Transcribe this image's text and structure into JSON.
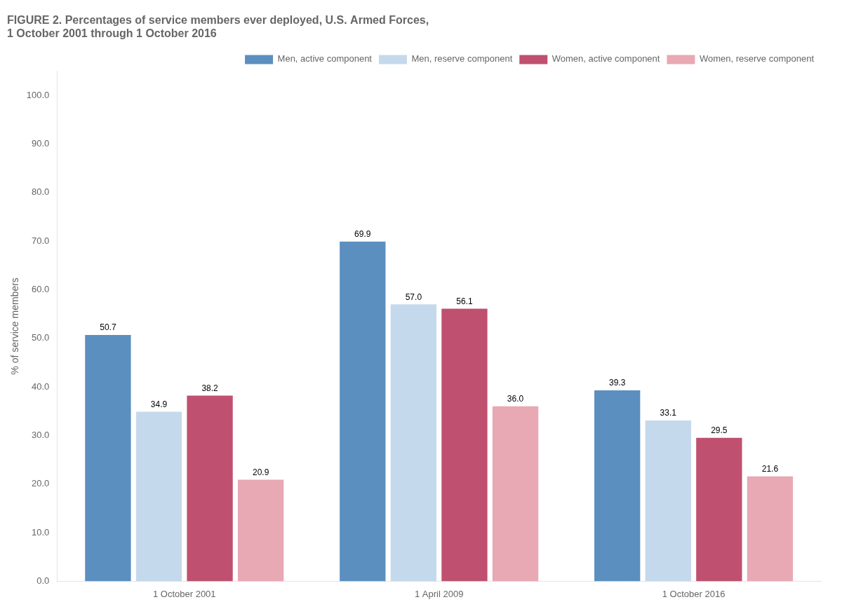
{
  "chart_data": {
    "type": "bar",
    "title": [
      "FIGURE 2. Percentages of service members ever deployed, U.S. Armed Forces,",
      "1 October 2001 through 1 October 2016"
    ],
    "categories": [
      "1 October 2001",
      "1 April 2009",
      "1 October 2016"
    ],
    "series": [
      {
        "name": "Men, active component",
        "color": "#5B8FBF",
        "values": [
          50.7,
          69.9,
          39.3
        ],
        "value_labels": [
          "50.7",
          "69.9",
          "39.3"
        ]
      },
      {
        "name": "Men, reserve component",
        "color": "#C5D9EC",
        "values": [
          34.9,
          57.0,
          33.1
        ],
        "value_labels": [
          "34.9",
          "57.0",
          "33.1"
        ]
      },
      {
        "name": "Women, active component",
        "color": "#C05070",
        "values": [
          38.2,
          56.1,
          29.5
        ],
        "value_labels": [
          "38.2",
          "56.1",
          "29.5"
        ]
      },
      {
        "name": "Women, reserve component",
        "color": "#E8A8B4",
        "values": [
          20.9,
          36.0,
          21.6
        ],
        "value_labels": [
          "20.9",
          "36.0",
          "21.6"
        ]
      }
    ],
    "ylabel": "% of service members",
    "ylim": [
      0,
      105
    ],
    "yticks": [
      {
        "value": 0,
        "label": "0.0"
      },
      {
        "value": 10,
        "label": "10.0"
      },
      {
        "value": 20,
        "label": "20.0"
      },
      {
        "value": 30,
        "label": "30.0"
      },
      {
        "value": 40,
        "label": "40.0"
      },
      {
        "value": 50,
        "label": "50.0"
      },
      {
        "value": 60,
        "label": "60.0"
      },
      {
        "value": 70,
        "label": "70.0"
      },
      {
        "value": 80,
        "label": "80.0"
      },
      {
        "value": 90,
        "label": "90.0"
      },
      {
        "value": 100,
        "label": "100.0"
      }
    ],
    "grid": false,
    "legend": "top-right",
    "data_labels": true
  }
}
